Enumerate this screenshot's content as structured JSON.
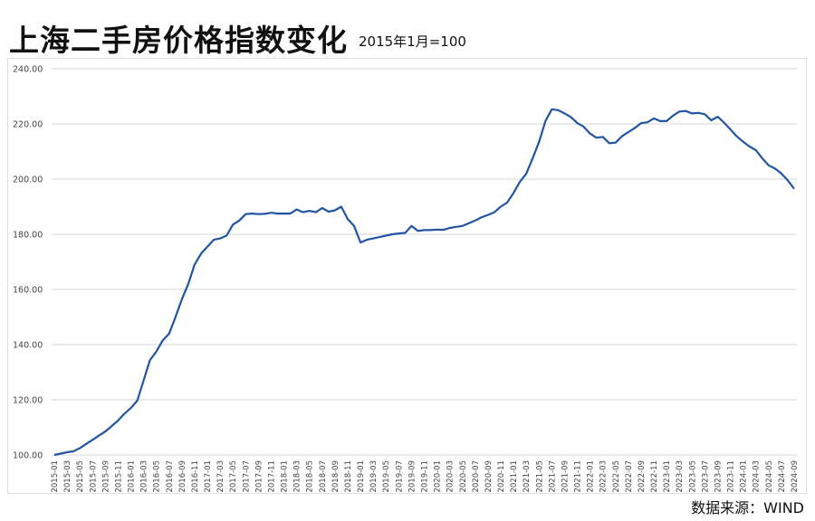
{
  "title": "上海二手房价格指数变化",
  "subtitle": "2015年1月=100",
  "source": "数据来源：WIND",
  "chart_data": {
    "type": "line",
    "title": "上海二手房价格指数变化",
    "subtitle": "2015年1月=100",
    "xlabel": "",
    "ylabel": "",
    "ylim": [
      100,
      240
    ],
    "y_ticks": [
      "100.00",
      "120.00",
      "140.00",
      "160.00",
      "180.00",
      "200.00",
      "220.00",
      "240.00"
    ],
    "grid": "horizontal",
    "legend": "none",
    "line_color": "#2155a3",
    "x_start": "2015-01",
    "x_end": "2024-09",
    "x_tick_labels": [
      "2015-01",
      "2015-03",
      "2015-05",
      "2015-07",
      "2015-09",
      "2015-11",
      "2016-01",
      "2016-03",
      "2016-05",
      "2016-07",
      "2016-09",
      "2016-11",
      "2017-01",
      "2017-03",
      "2017-05",
      "2017-07",
      "2017-09",
      "2017-11",
      "2018-01",
      "2018-03",
      "2018-05",
      "2018-07",
      "2018-09",
      "2018-11",
      "2019-01",
      "2019-03",
      "2019-05",
      "2019-07",
      "2019-09",
      "2019-11",
      "2020-01",
      "2020-03",
      "2020-05",
      "2020-07",
      "2020-09",
      "2020-11",
      "2021-01",
      "2021-03",
      "2021-05",
      "2021-07",
      "2021-09",
      "2021-11",
      "2022-01",
      "2022-03",
      "2022-05",
      "2022-07",
      "2022-09",
      "2022-11",
      "2023-01",
      "2023-03",
      "2023-05",
      "2023-07",
      "2023-09",
      "2023-11",
      "2024-01",
      "2024-03",
      "2024-05",
      "2024-07",
      "2024-09"
    ],
    "values": [
      100,
      100.5,
      101,
      101.3,
      102.5,
      104,
      105.5,
      107,
      108.5,
      110.5,
      112.5,
      115,
      117,
      119.7,
      127,
      134.4,
      137.5,
      141.5,
      144,
      150,
      156.5,
      162,
      169,
      173,
      175.5,
      178,
      178.5,
      179.5,
      183.5,
      185,
      187.3,
      187.5,
      187.3,
      187.4,
      187.8,
      187.5,
      187.5,
      187.5,
      189,
      188,
      188.5,
      188,
      189.5,
      188.2,
      188.7,
      190,
      185.5,
      183,
      177,
      178,
      178.5,
      179,
      179.5,
      180,
      180.3,
      180.5,
      183,
      181.2,
      181.5,
      181.5,
      181.7,
      181.6,
      182.3,
      182.7,
      183,
      184,
      185,
      186.2,
      187,
      188,
      190,
      191.5,
      195,
      199,
      202,
      207.5,
      213.5,
      221,
      225.3,
      225,
      223.8,
      222.5,
      220.3,
      219,
      216.5,
      215,
      215.3,
      213,
      213.2,
      215.5,
      217,
      218.5,
      220.3,
      220.6,
      222,
      221,
      221,
      223,
      224.5,
      224.7,
      223.8,
      224,
      223.5,
      221.3,
      222.6,
      220.5,
      218,
      215.5,
      213.5,
      211.8,
      210.5,
      207.5,
      205,
      203.8,
      202,
      199.5,
      196.5
    ]
  }
}
